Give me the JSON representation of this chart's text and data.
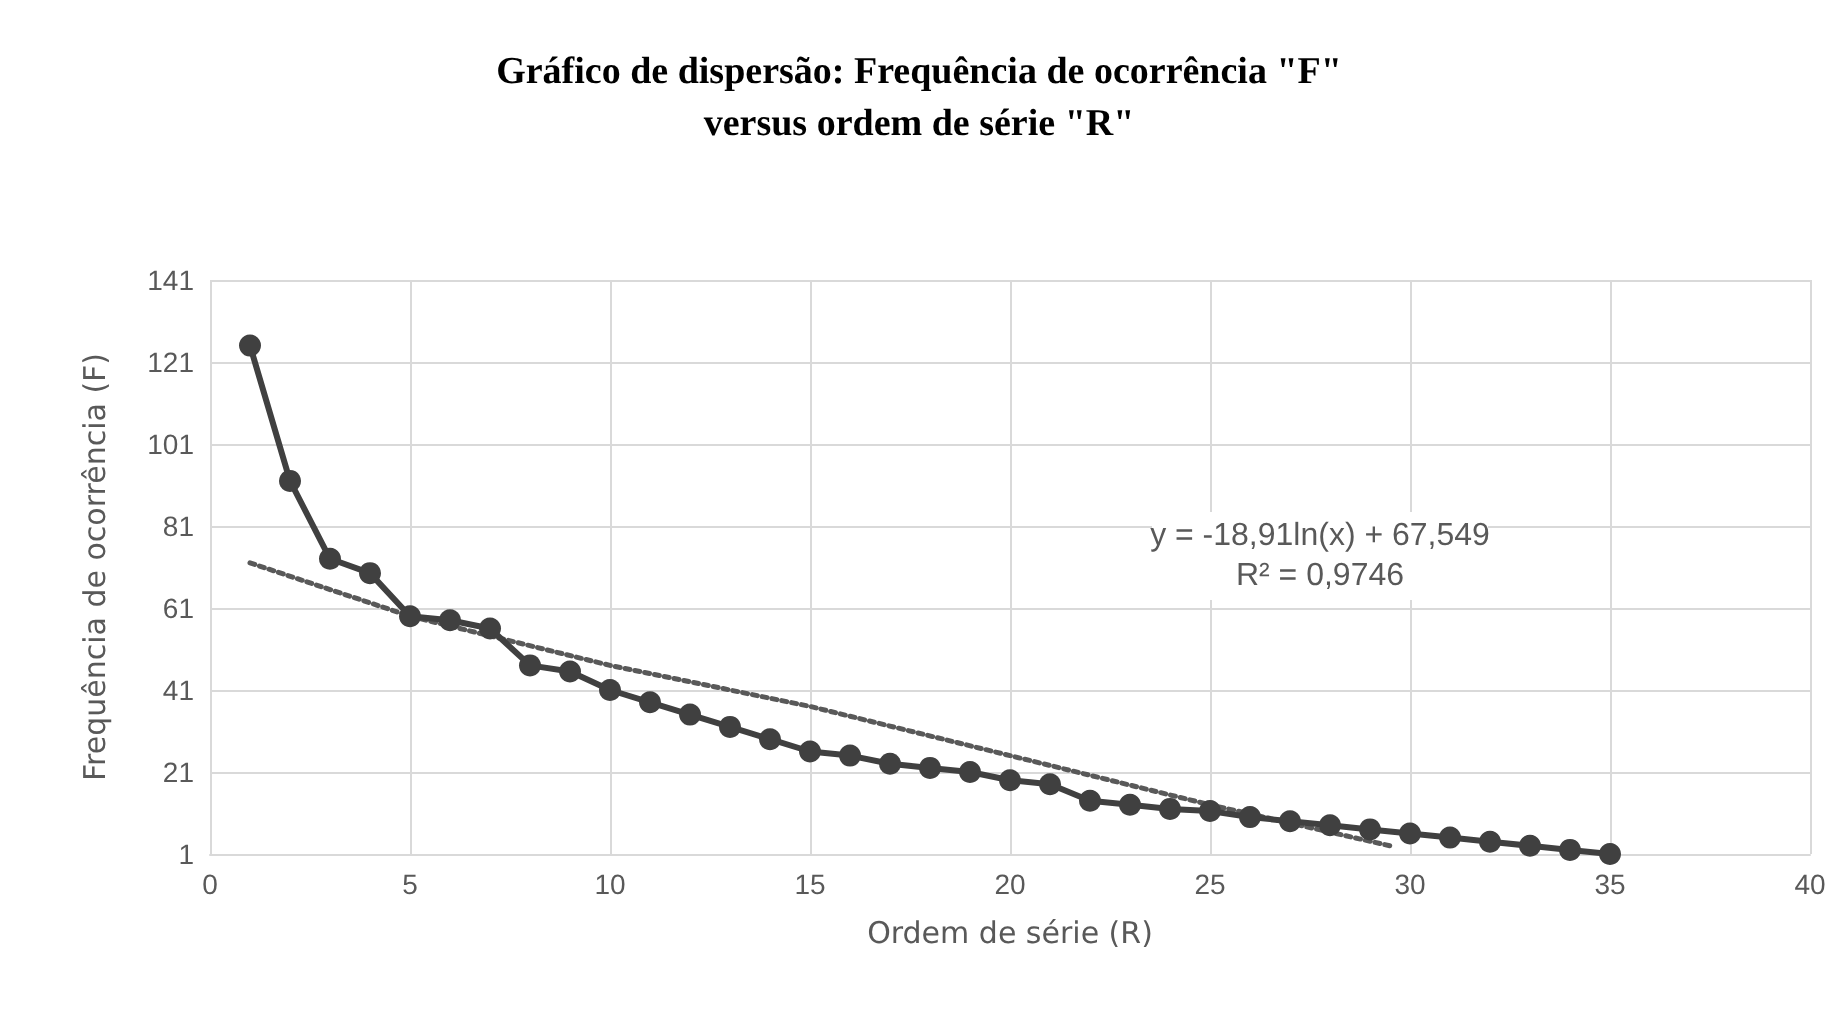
{
  "chart_data": {
    "type": "line",
    "title": "Gráfico de dispersão: Frequência de ocorrência \"F\" versus ordem de série \"R\"",
    "xlabel": "Ordem de série (R)",
    "ylabel": "Frequência de ocorrência (F)",
    "x": [
      1,
      2,
      3,
      4,
      5,
      6,
      7,
      8,
      9,
      10,
      11,
      12,
      13,
      14,
      15,
      16,
      17,
      18,
      19,
      20,
      21,
      22,
      23,
      24,
      25,
      26,
      27,
      28,
      29,
      30,
      31,
      32,
      33,
      34,
      35
    ],
    "series": [
      {
        "color": "#404040",
        "marker": "circle",
        "line_style": "solid",
        "values": [
          125,
          92,
          73,
          69.5,
          59,
          58,
          56,
          47,
          45.5,
          41,
          38,
          35,
          32,
          29,
          26,
          25,
          23,
          22,
          21,
          19,
          18,
          14,
          13,
          12,
          11.5,
          10,
          9,
          8,
          7,
          6,
          5,
          4,
          3,
          2,
          1
        ]
      },
      {
        "type": "line",
        "color": "#595959",
        "marker": "none",
        "line_style": "dotted",
        "x": [
          1,
          5,
          10,
          15,
          20,
          25,
          29.5
        ],
        "values": [
          72,
          59,
          47,
          37,
          25,
          13,
          3
        ]
      }
    ],
    "annotations": [
      "y = -18,91ln(x) + 67,549",
      "R² = 0,9746"
    ],
    "xlim": [
      0,
      40
    ],
    "xticks": [
      0,
      5,
      10,
      15,
      20,
      25,
      30,
      35,
      40
    ],
    "ylim": [
      1,
      141
    ],
    "yticks": [
      1,
      21,
      41,
      61,
      81,
      101,
      121,
      141
    ],
    "grid": true
  }
}
